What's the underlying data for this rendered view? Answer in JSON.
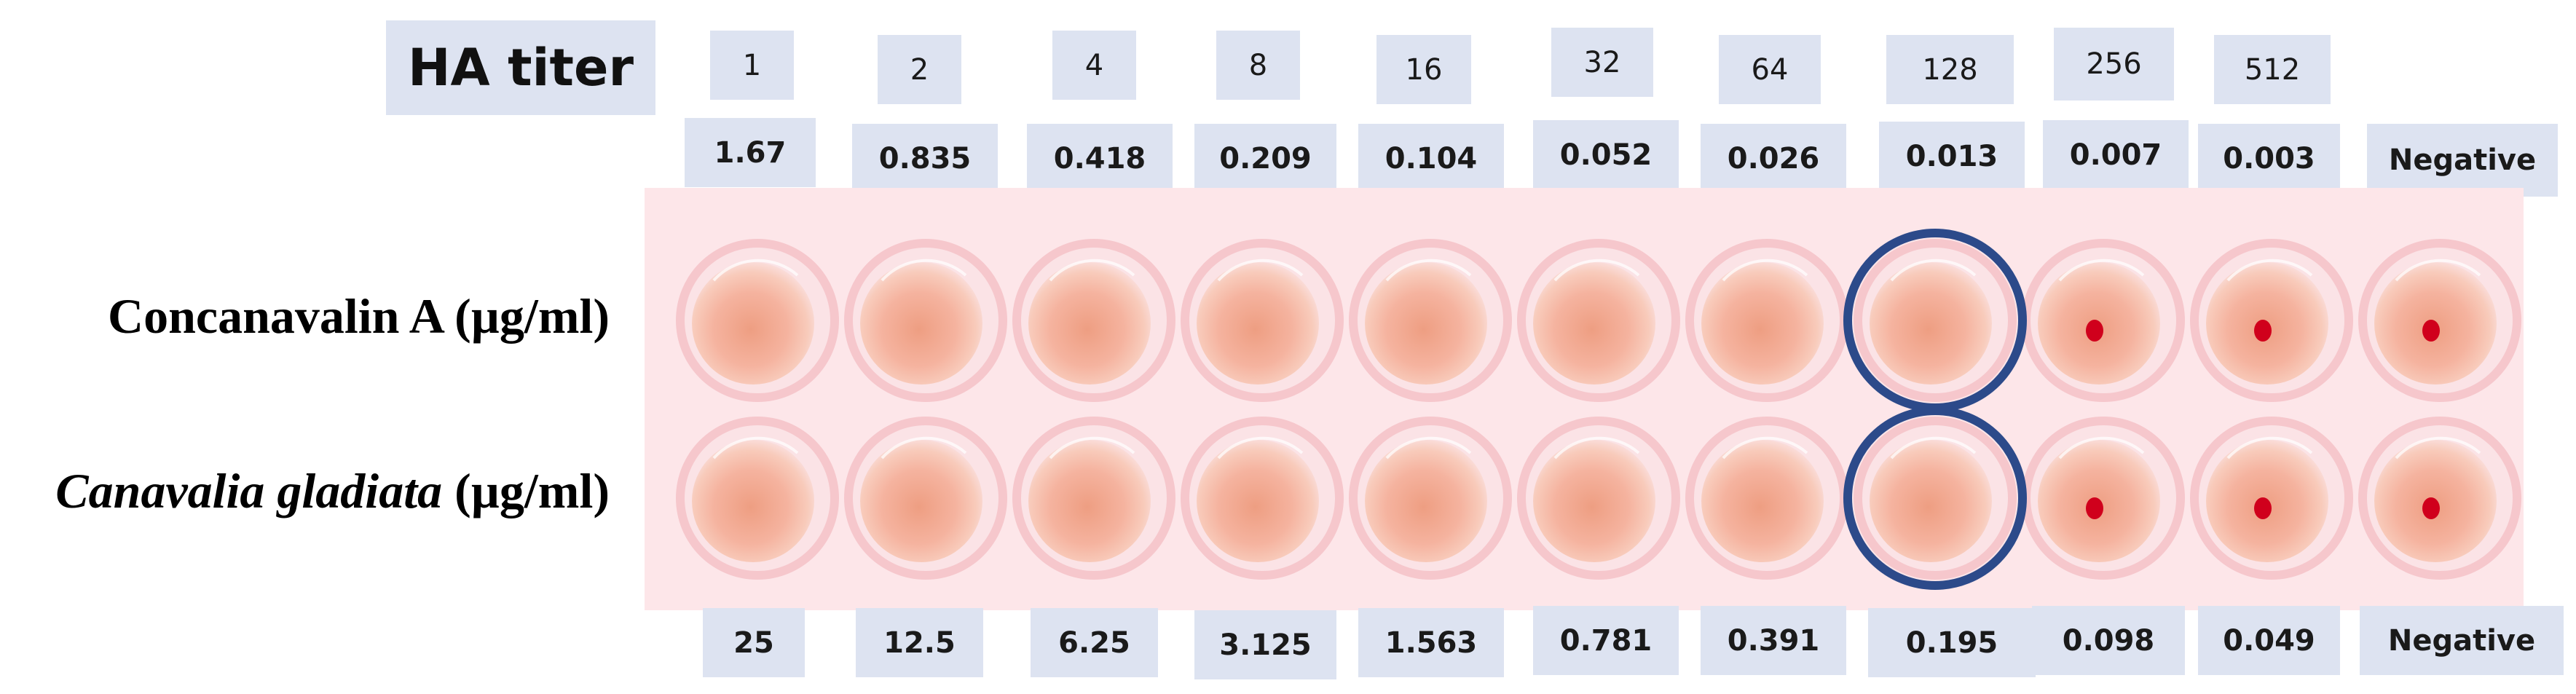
{
  "ha_titer": {
    "title": "HA titer",
    "values": [
      "1",
      "2",
      "4",
      "8",
      "16",
      "32",
      "64",
      "128",
      "256",
      "512"
    ]
  },
  "top_concentrations": [
    "1.67",
    "0.835",
    "0.418",
    "0.209",
    "0.104",
    "0.052",
    "0.026",
    "0.013",
    "0.007",
    "0.003",
    "Negative"
  ],
  "row_labels": {
    "row1": "Concanavalin A (µg/ml)",
    "row2_italic": "Canavalia gladiata",
    "row2_unit": " (µg/ml)"
  },
  "bottom_concentrations": [
    "25",
    "12.5",
    "6.25",
    "3.125",
    "1.563",
    "0.781",
    "0.391",
    "0.195",
    "0.098",
    "0.049",
    "Negative"
  ],
  "plate": {
    "columns": 11,
    "rows": 2,
    "pellet_columns": [
      8,
      9,
      10
    ],
    "highlighted_column": 7,
    "colors": {
      "background": "#fde6e9",
      "well_rim": "#f6c7cc",
      "well_fill": "#f5b39f",
      "well_center": "#ee9e82",
      "pellet": "#d0001c",
      "highlight_circle": "#2c4a8a"
    }
  }
}
